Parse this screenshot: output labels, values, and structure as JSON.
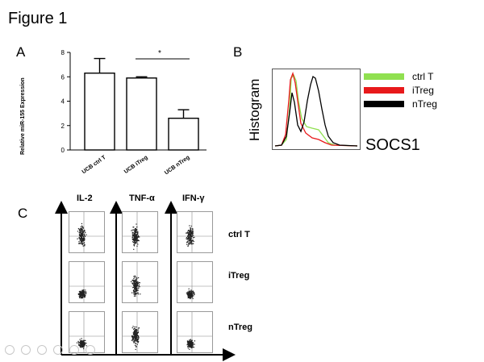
{
  "figure": {
    "title": "Figure 1"
  },
  "panel_a": {
    "letter": "A",
    "significance": "*",
    "chart_data": {
      "type": "bar",
      "categories": [
        "UCB ctrl T",
        "UCB iTreg",
        "UCB nTreg"
      ],
      "values": [
        6.3,
        5.9,
        2.6
      ],
      "errors": [
        1.2,
        0.1,
        0.7
      ],
      "ylabel": "Relative miR-155 Expression",
      "xlabel": "",
      "ylim": [
        0,
        8
      ],
      "yticks": [
        "0",
        "2",
        "4",
        "6",
        "8"
      ]
    }
  },
  "panel_b": {
    "letter": "B",
    "ylabel": "Histogram",
    "xlabel": "SOCS1",
    "legend": [
      {
        "label": "ctrl T",
        "color": "#90e050"
      },
      {
        "label": "iTreg",
        "color": "#e8191b"
      },
      {
        "label": "nTreg",
        "color": "#000000"
      }
    ]
  },
  "panel_c": {
    "letter": "C",
    "columns": [
      "IL-2",
      "TNF-α",
      "IFN-γ"
    ],
    "rows": [
      "ctrl T",
      "iTreg",
      "nTreg"
    ]
  }
}
